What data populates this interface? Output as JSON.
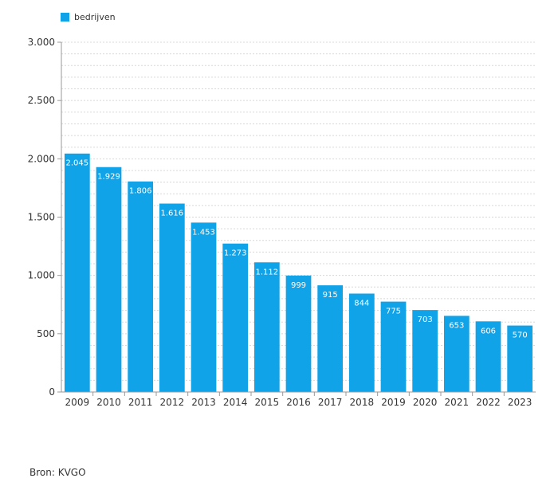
{
  "legend": {
    "series_name": "bedrijven"
  },
  "source": "Bron: KVGO",
  "colors": {
    "bar": "#11a3e8",
    "grid": "#d8d8d8",
    "axis": "#999999",
    "text": "#333333",
    "label": "#ffffff"
  },
  "chart_data": {
    "type": "bar",
    "categories": [
      "2009",
      "2010",
      "2011",
      "2012",
      "2013",
      "2014",
      "2015",
      "2016",
      "2017",
      "2018",
      "2019",
      "2020",
      "2021",
      "2022",
      "2023"
    ],
    "series": [
      {
        "name": "bedrijven",
        "values": [
          2045,
          1929,
          1806,
          1616,
          1453,
          1273,
          1112,
          999,
          915,
          844,
          775,
          703,
          653,
          606,
          570
        ]
      }
    ],
    "value_labels": [
      "2.045",
      "1.929",
      "1.806",
      "1.616",
      "1.453",
      "1.273",
      "1.112",
      "999",
      "915",
      "844",
      "775",
      "703",
      "653",
      "606",
      "570"
    ],
    "y_ticks": [
      0,
      500,
      1000,
      1500,
      2000,
      2500,
      3000
    ],
    "y_tick_labels": [
      "0",
      "500",
      "1.000",
      "1.500",
      "2.000",
      "2.500",
      "3.000"
    ],
    "ylim": [
      0,
      3000
    ],
    "minor_grid_step": 100,
    "grid": true,
    "legend_position": "top-left"
  }
}
